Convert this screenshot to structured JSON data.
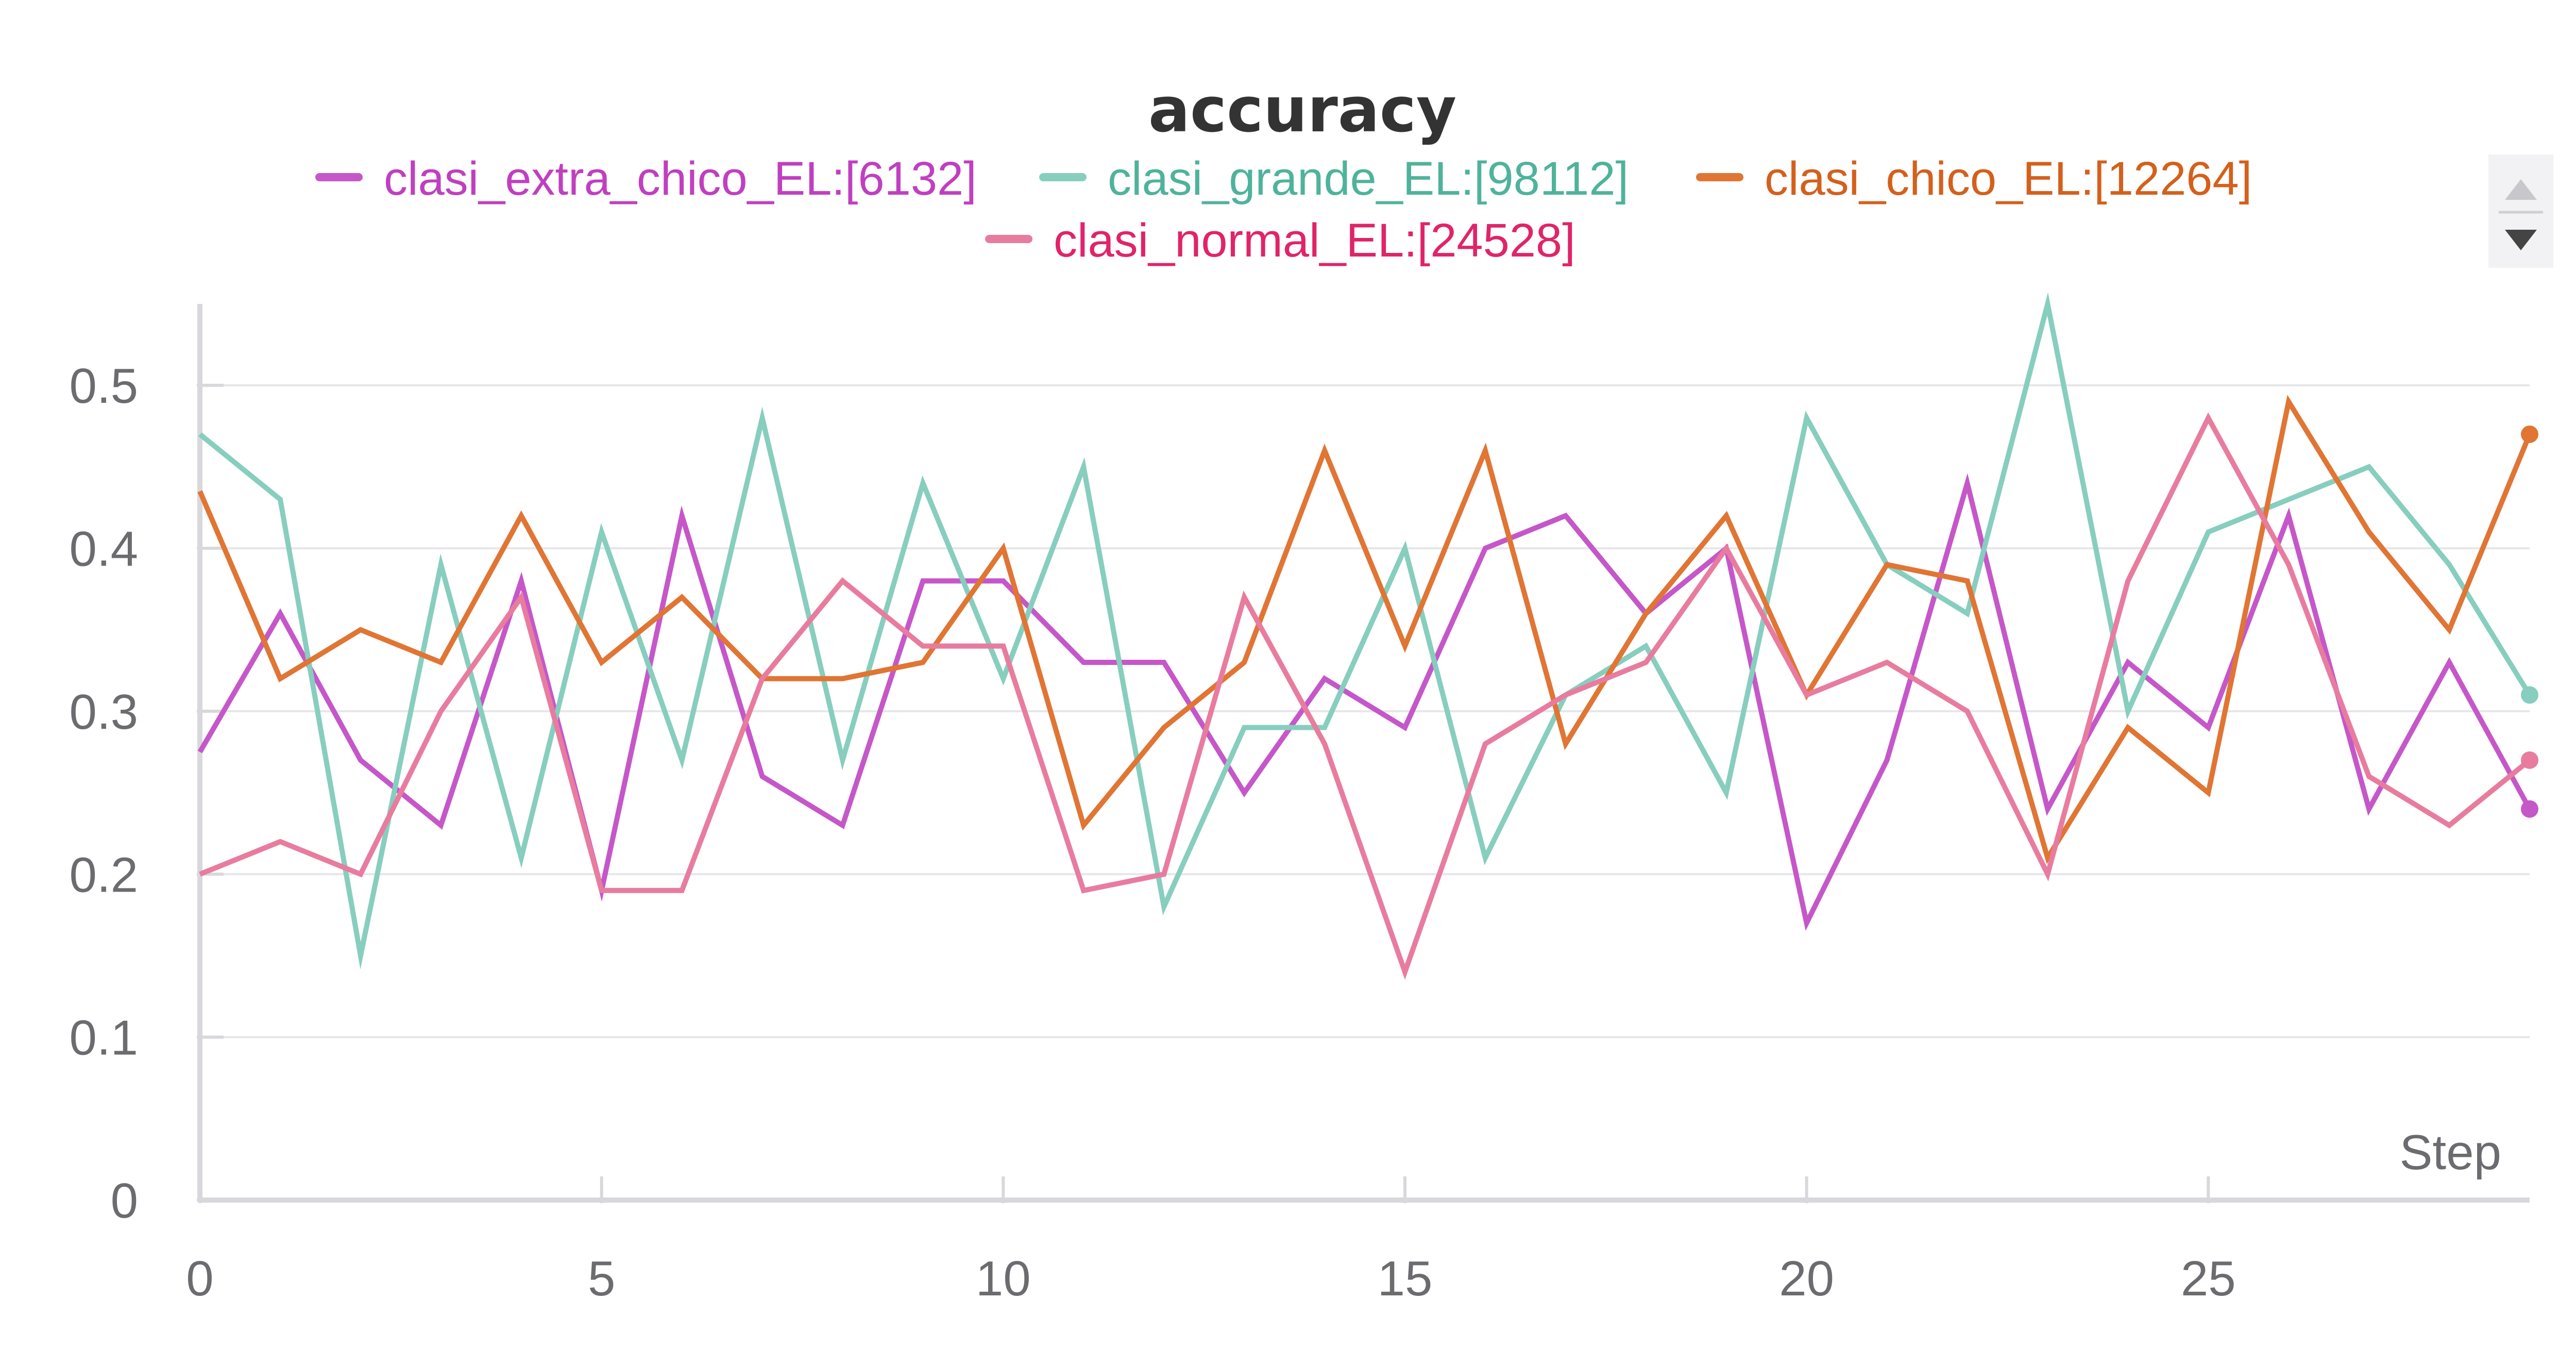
{
  "chart_data": {
    "type": "line",
    "title": "accuracy",
    "xlabel": "Step",
    "ylabel": "",
    "xlim": [
      0,
      29
    ],
    "ylim": [
      0,
      0.55
    ],
    "xticks": [
      0,
      5,
      10,
      15,
      20,
      25
    ],
    "yticks": [
      0,
      0.1,
      0.2,
      0.3,
      0.4,
      0.5
    ],
    "xtick_labels": [
      "0",
      "5",
      "10",
      "15",
      "20",
      "25"
    ],
    "ytick_labels": [
      "0",
      "0.1",
      "0.2",
      "0.3",
      "0.4",
      "0.5"
    ],
    "grid": true,
    "legend_position": "top",
    "x": [
      0,
      1,
      2,
      3,
      4,
      5,
      6,
      7,
      8,
      9,
      10,
      11,
      12,
      13,
      14,
      15,
      16,
      17,
      18,
      19,
      20,
      21,
      22,
      23,
      24,
      25,
      26,
      27,
      28,
      29
    ],
    "series": [
      {
        "name": "clasi_extra_chico_EL:[6132]",
        "color": "#c557c9",
        "values": [
          0.275,
          0.36,
          0.27,
          0.23,
          0.38,
          0.19,
          0.42,
          0.26,
          0.23,
          0.38,
          0.38,
          0.33,
          0.33,
          0.25,
          0.32,
          0.29,
          0.4,
          0.42,
          0.36,
          0.4,
          0.17,
          0.27,
          0.44,
          0.24,
          0.33,
          0.29,
          0.42,
          0.24,
          0.33,
          0.24
        ]
      },
      {
        "name": "clasi_grande_EL:[98112]",
        "color": "#87cebf",
        "values": [
          0.47,
          0.43,
          0.15,
          0.39,
          0.21,
          0.41,
          0.27,
          0.48,
          0.27,
          0.44,
          0.32,
          0.45,
          0.18,
          0.29,
          0.29,
          0.4,
          0.21,
          0.31,
          0.34,
          0.25,
          0.48,
          0.39,
          0.36,
          0.55,
          0.3,
          0.41,
          0.43,
          0.45,
          0.39,
          0.31
        ]
      },
      {
        "name": "clasi_chico_EL:[12264]",
        "color": "#e07534",
        "values": [
          0.435,
          0.32,
          0.35,
          0.33,
          0.42,
          0.33,
          0.37,
          0.32,
          0.32,
          0.33,
          0.4,
          0.23,
          0.29,
          0.33,
          0.46,
          0.34,
          0.46,
          0.28,
          0.36,
          0.42,
          0.31,
          0.39,
          0.38,
          0.21,
          0.29,
          0.25,
          0.49,
          0.41,
          0.35,
          0.47
        ]
      },
      {
        "name": "clasi_normal_EL:[24528]",
        "color": "#e87c9f",
        "values": [
          0.2,
          0.22,
          0.2,
          0.3,
          0.37,
          0.19,
          0.19,
          0.32,
          0.38,
          0.34,
          0.34,
          0.19,
          0.2,
          0.37,
          0.28,
          0.14,
          0.28,
          0.31,
          0.33,
          0.4,
          0.31,
          0.33,
          0.3,
          0.2,
          0.38,
          0.48,
          0.39,
          0.26,
          0.23,
          0.27
        ]
      }
    ],
    "legend_text_colors": [
      "#c03fc0",
      "#4fb39b",
      "#d4601c",
      "#e0246a"
    ]
  },
  "scroll_control": {
    "up_icon": "triangle-up-icon",
    "down_icon": "triangle-down-icon"
  }
}
